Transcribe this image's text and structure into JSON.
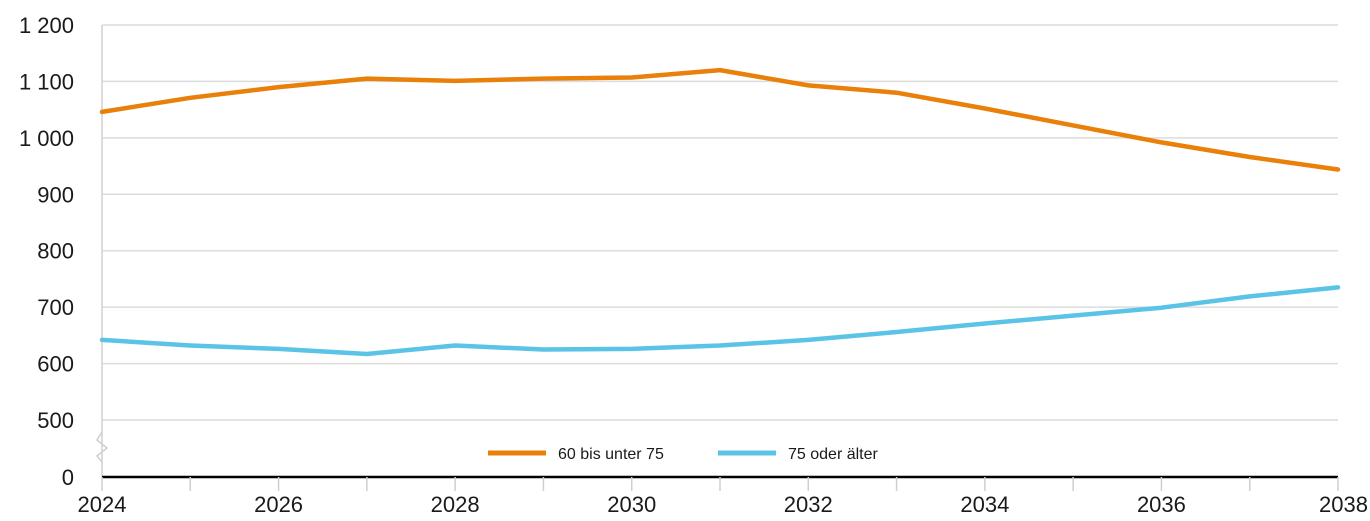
{
  "chart_data": {
    "type": "line",
    "x": [
      2024,
      2025,
      2026,
      2027,
      2028,
      2029,
      2030,
      2031,
      2032,
      2033,
      2034,
      2035,
      2036,
      2037,
      2038
    ],
    "x_tick_labels": [
      "2024",
      "2026",
      "2028",
      "2030",
      "2032",
      "2034",
      "2036",
      "2038"
    ],
    "y_tick_labels": [
      "0",
      "500",
      "600",
      "700",
      "800",
      "900",
      "1 000",
      "1 100",
      "1 200"
    ],
    "ylim": [
      0,
      1200
    ],
    "axis_break": true,
    "grid": true,
    "legend_position": "bottom-center",
    "series": [
      {
        "name": "60 bis unter 75",
        "color": "#e8800a",
        "values": [
          1046,
          1071,
          1090,
          1105,
          1101,
          1105,
          1107,
          1120,
          1093,
          1080,
          1052,
          1022,
          992,
          966,
          944
        ]
      },
      {
        "name": "75 oder älter",
        "color": "#5bc3e6",
        "values": [
          642,
          632,
          626,
          617,
          632,
          625,
          626,
          632,
          642,
          656,
          671,
          685,
          699,
          719,
          735
        ]
      }
    ]
  }
}
